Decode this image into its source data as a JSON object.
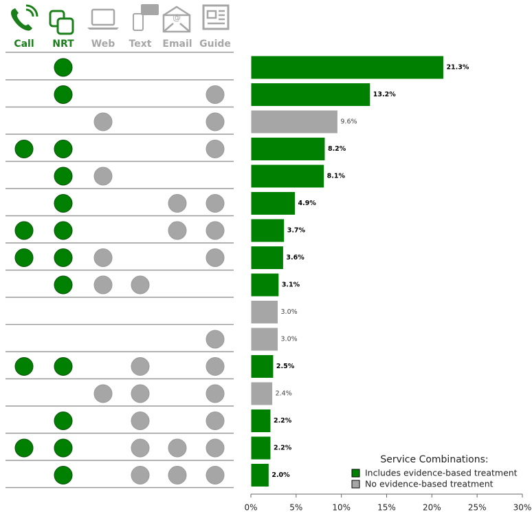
{
  "chart_data": {
    "type": "bar",
    "orientation": "horizontal",
    "columns": [
      {
        "label": "Call",
        "color": "#1a7f1a"
      },
      {
        "label": "NRT",
        "color": "#1a7f1a"
      },
      {
        "label": "Web",
        "color": "#a6a6a6"
      },
      {
        "label": "Text",
        "color": "#a6a6a6"
      },
      {
        "label": "Email",
        "color": "#a6a6a6"
      },
      {
        "label": "Guide",
        "color": "#a6a6a6"
      }
    ],
    "members": [
      [
        0,
        1,
        0,
        0,
        0,
        0
      ],
      [
        0,
        1,
        0,
        0,
        0,
        1
      ],
      [
        0,
        0,
        1,
        0,
        0,
        1
      ],
      [
        1,
        1,
        0,
        0,
        0,
        1
      ],
      [
        0,
        1,
        1,
        0,
        0,
        0
      ],
      [
        0,
        1,
        0,
        0,
        1,
        1
      ],
      [
        1,
        1,
        0,
        0,
        1,
        1
      ],
      [
        1,
        1,
        1,
        0,
        0,
        1
      ],
      [
        0,
        1,
        1,
        1,
        0,
        0
      ],
      [
        0,
        0,
        0,
        0,
        0,
        0
      ],
      [
        0,
        0,
        0,
        0,
        0,
        1
      ],
      [
        1,
        1,
        0,
        1,
        0,
        1
      ],
      [
        0,
        0,
        1,
        1,
        0,
        1
      ],
      [
        0,
        1,
        0,
        1,
        0,
        1
      ],
      [
        1,
        1,
        0,
        1,
        1,
        1
      ],
      [
        0,
        1,
        0,
        1,
        1,
        1
      ]
    ],
    "legend_title": "Service Combinations:",
    "series": [
      {
        "name": "Includes evidence-based treatment",
        "color": "#008000",
        "values": [
          21.3,
          13.2,
          null,
          8.2,
          8.1,
          4.9,
          3.7,
          3.6,
          3.1,
          null,
          null,
          2.5,
          null,
          2.2,
          2.2,
          2.0
        ],
        "value_labels": [
          "21.3%",
          "13.2%",
          null,
          "8.2%",
          "8.1%",
          "4.9%",
          "3.7%",
          "3.6%",
          "3.1%",
          null,
          null,
          "2.5%",
          null,
          "2.2%",
          "2.2%",
          "2.0%"
        ]
      },
      {
        "name": "No evidence-based treatment",
        "color": "#a6a6a6",
        "values": [
          null,
          null,
          9.6,
          null,
          null,
          null,
          null,
          null,
          null,
          3.0,
          3.0,
          null,
          2.4,
          null,
          null,
          null
        ],
        "value_labels": [
          null,
          null,
          "9.6%",
          null,
          null,
          null,
          null,
          null,
          null,
          "3.0%",
          "3.0%",
          null,
          "2.4%",
          null,
          null,
          null
        ]
      }
    ],
    "xlim": [
      0,
      30
    ],
    "xticks": [
      {
        "value": 0,
        "label": "0%"
      },
      {
        "value": 5,
        "label": "5%"
      },
      {
        "value": 10,
        "label": "10%"
      },
      {
        "value": 15,
        "label": "15%"
      },
      {
        "value": 20,
        "label": "20%"
      },
      {
        "value": 25,
        "label": "25%"
      },
      {
        "value": 30,
        "label": "30%"
      }
    ]
  }
}
